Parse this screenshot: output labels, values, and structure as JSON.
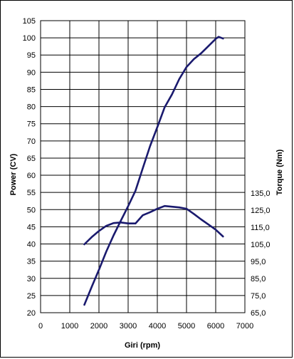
{
  "chart_data": {
    "type": "line",
    "title": "",
    "xlabel": "Giri (rpm)",
    "ylabel_left": "Power (CV)",
    "ylabel_right": "Torque (Nm)",
    "xlim": [
      0,
      7000
    ],
    "ylim_left": [
      20,
      105
    ],
    "ylim_right": [
      65,
      135
    ],
    "x_ticks": [
      "0",
      "1000",
      "2000",
      "3000",
      "4000",
      "5000",
      "6000",
      "7000"
    ],
    "y_left_ticks": [
      "20",
      "25",
      "30",
      "35",
      "40",
      "45",
      "50",
      "55",
      "60",
      "65",
      "70",
      "75",
      "80",
      "85",
      "90",
      "95",
      "100",
      "105"
    ],
    "y_right_ticks": [
      "65,0",
      "75,0",
      "85,0",
      "95,0",
      "105,0",
      "115,0",
      "125,0",
      "135,0"
    ],
    "grid": true,
    "line_color": "#1a1a6e",
    "series": [
      {
        "axis": "left",
        "x": [
          1500,
          1750,
          2000,
          2250,
          2500,
          2750,
          3000,
          3250,
          3500,
          3750,
          4000,
          4250,
          4500,
          4750,
          5000,
          5250,
          5500,
          5750,
          6000,
          6100,
          6250
        ],
        "values": [
          22.3,
          27.5,
          32.5,
          37.8,
          42.5,
          46.8,
          51,
          55.5,
          62,
          68.5,
          74,
          79.8,
          83.5,
          88,
          91.5,
          93.8,
          95.5,
          97.6,
          99.7,
          100.3,
          99.8
        ]
      },
      {
        "axis": "right",
        "x": [
          1500,
          1750,
          2000,
          2250,
          2500,
          2750,
          3000,
          3250,
          3500,
          3750,
          4000,
          4250,
          4500,
          4750,
          5000,
          5250,
          5500,
          5750,
          6000,
          6250
        ],
        "values": [
          105,
          109.2,
          112.8,
          115.8,
          117.4,
          117.8,
          117.2,
          117.2,
          122,
          123.8,
          125.8,
          127.4,
          127,
          126.6,
          125.8,
          122.8,
          119.6,
          116.6,
          113.6,
          109.6
        ]
      }
    ]
  }
}
